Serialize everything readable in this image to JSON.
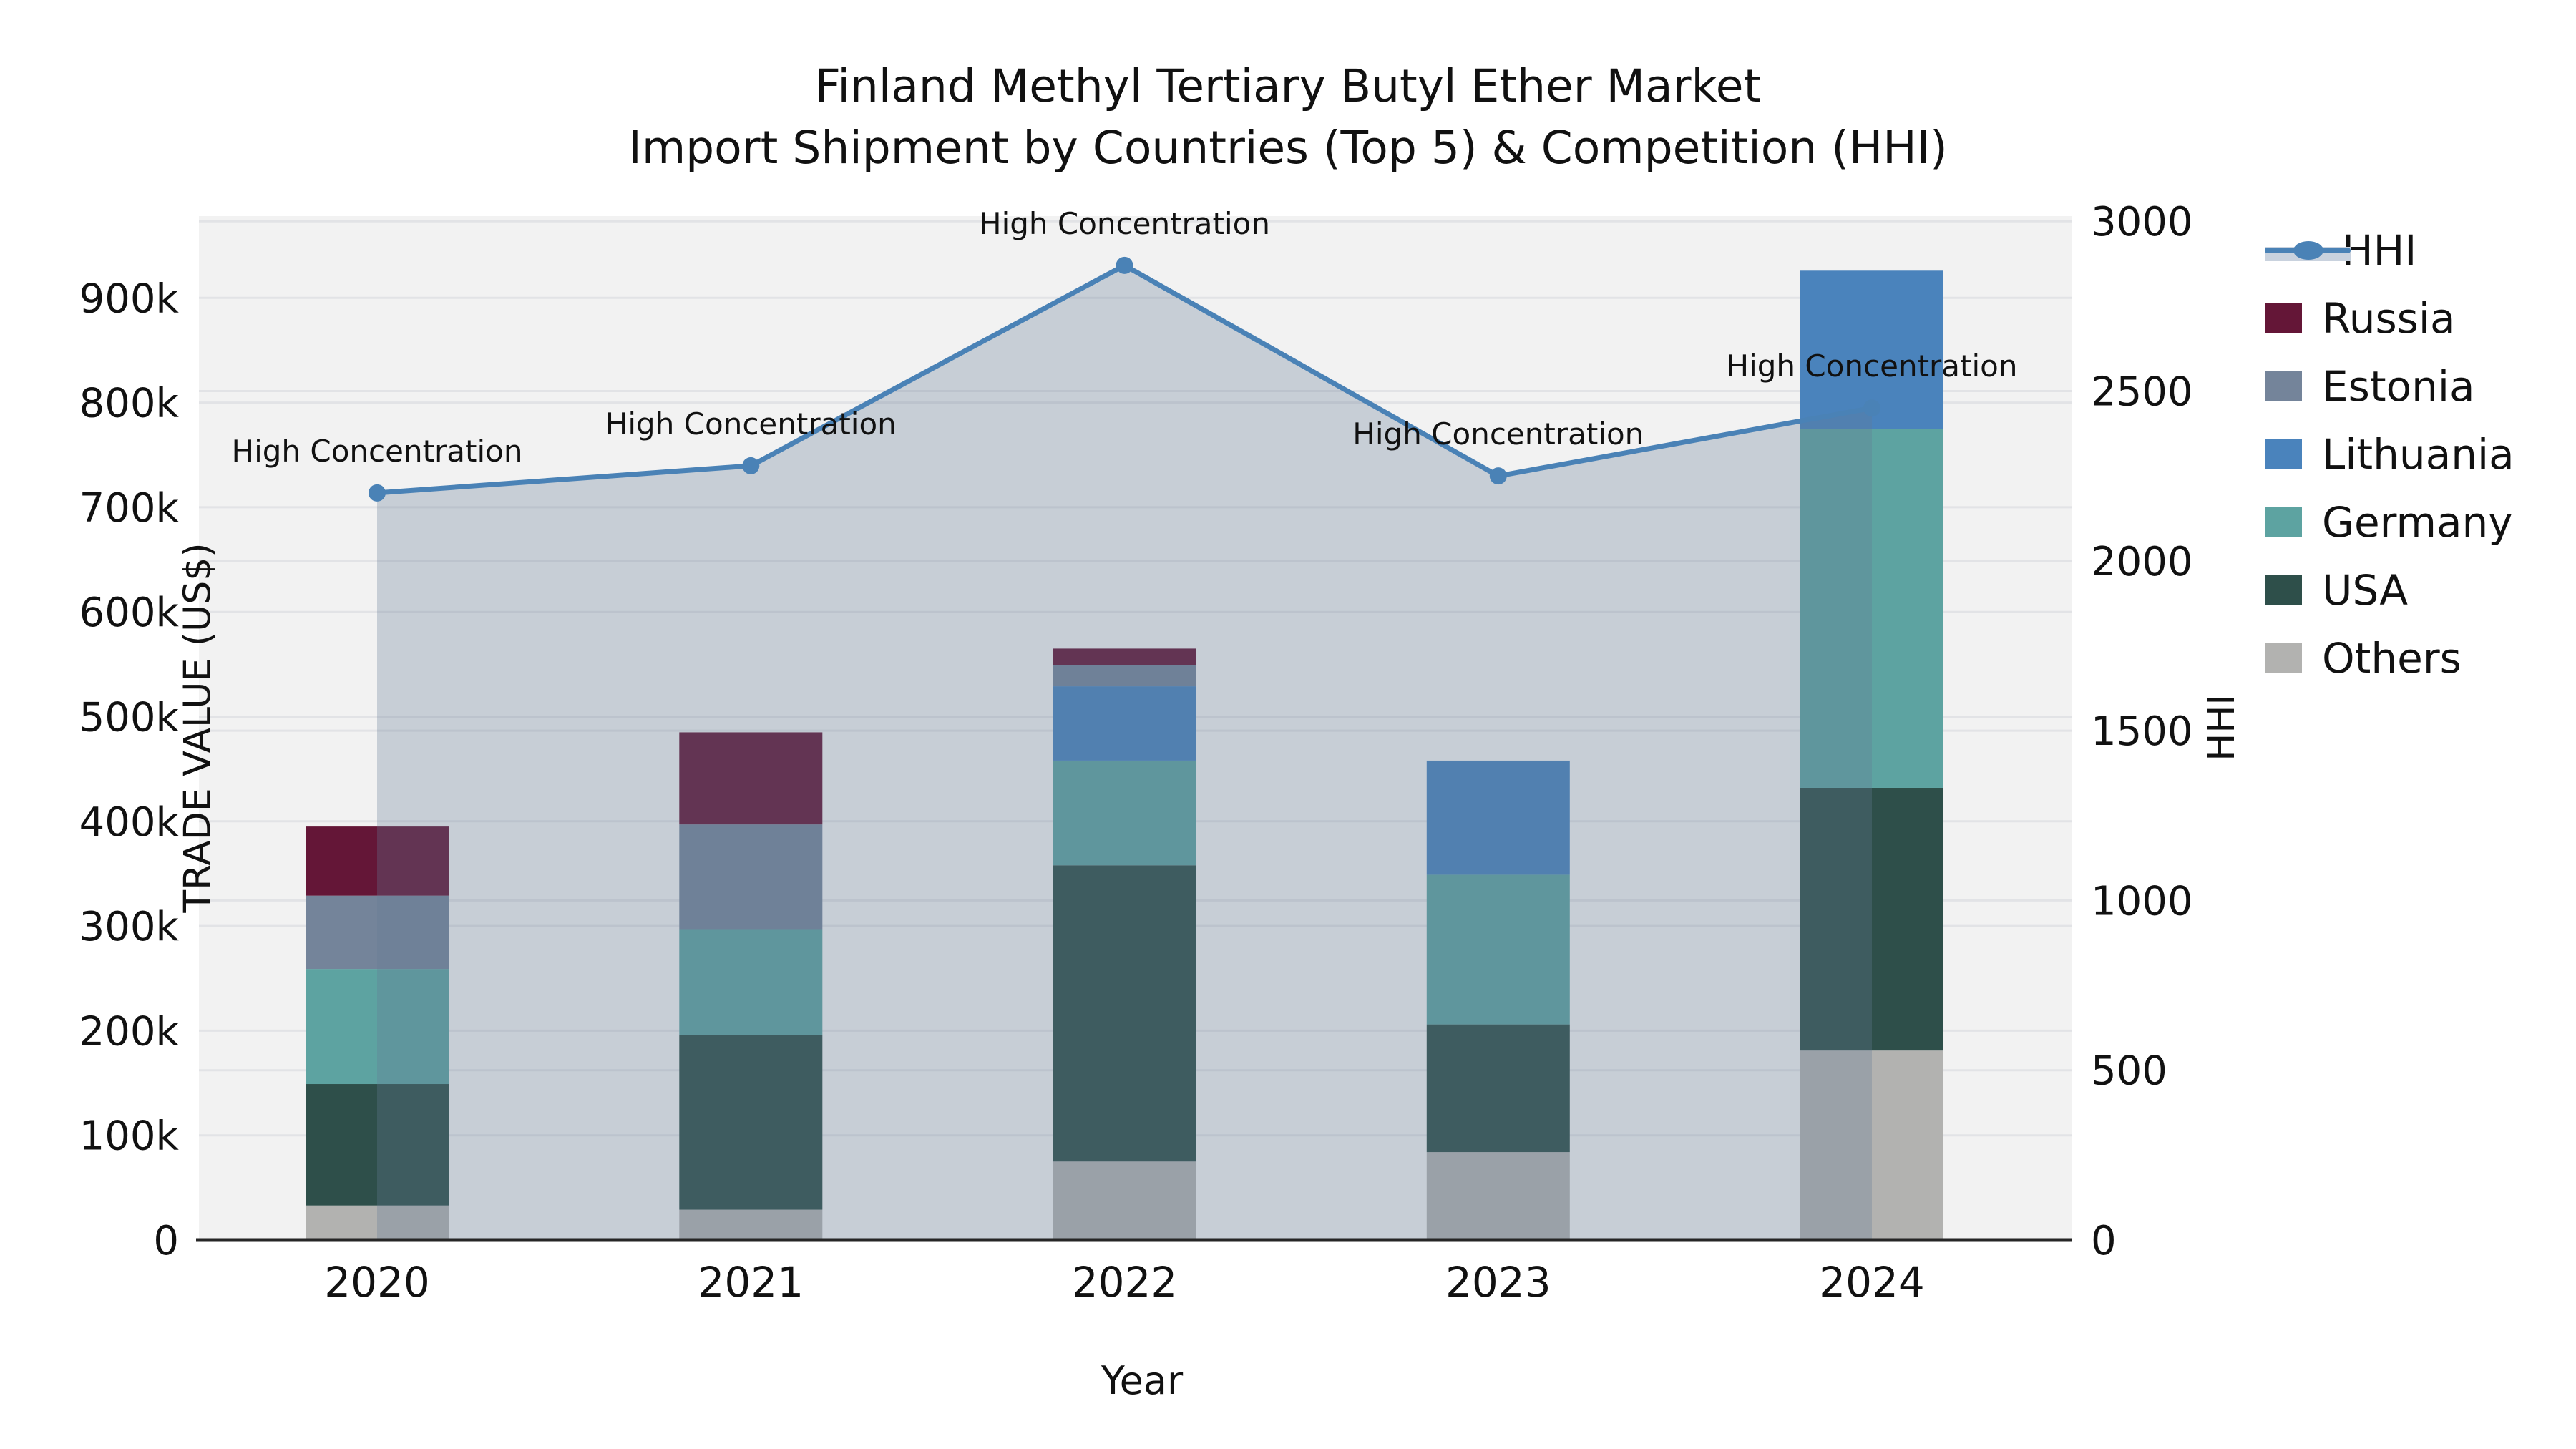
{
  "title": {
    "line1": "Finland Methyl Tertiary Butyl Ether Market",
    "line2": "Import Shipment by Countries (Top 5) & Competition (HHI)"
  },
  "axes": {
    "x": {
      "label": "Year",
      "tick_labels": [
        "2020",
        "2021",
        "2022",
        "2023",
        "2024"
      ]
    },
    "y_left": {
      "label": "TRADE VALUE (US$)",
      "tick_labels": [
        "0",
        "100k",
        "200k",
        "300k",
        "400k",
        "500k",
        "600k",
        "700k",
        "800k",
        "900k"
      ],
      "tick_values": [
        0,
        100000,
        200000,
        300000,
        400000,
        500000,
        600000,
        700000,
        800000,
        900000
      ]
    },
    "y_right": {
      "label": "HHI",
      "tick_labels": [
        "0",
        "500",
        "1000",
        "1500",
        "2000",
        "2500",
        "3000"
      ],
      "tick_values": [
        0,
        500,
        1000,
        1500,
        2000,
        2500,
        3000
      ]
    }
  },
  "legend": [
    {
      "label": "HHI",
      "type": "line",
      "color": "#4a82b6"
    },
    {
      "label": "Russia",
      "type": "swatch",
      "color": "#641637"
    },
    {
      "label": "Estonia",
      "type": "swatch",
      "color": "#74849a"
    },
    {
      "label": "Lithuania",
      "type": "swatch",
      "color": "#4a83bc"
    },
    {
      "label": "Germany",
      "type": "swatch",
      "color": "#5da3a1"
    },
    {
      "label": "USA",
      "type": "swatch",
      "color": "#2e4f4a"
    },
    {
      "label": "Others",
      "type": "swatch",
      "color": "#b2b2b0"
    }
  ],
  "colors": {
    "plot_background": "#f2f2f2",
    "gridline": "#e2e3e6",
    "axis_line": "#262626",
    "hhi_line": "#4a82b6",
    "hhi_area_fill": "rgba(100,123,150,0.30)",
    "annotation_text": "#111111"
  },
  "chart_data": {
    "type": "stacked-bar+line",
    "categories": [
      "2020",
      "2021",
      "2022",
      "2023",
      "2024"
    ],
    "bar_unit": "US$ trade value",
    "stack_order_bottom_to_top": [
      "Others",
      "USA",
      "Germany",
      "Lithuania",
      "Estonia",
      "Russia"
    ],
    "series": [
      {
        "name": "Russia",
        "color": "#641637",
        "values": [
          66000,
          88000,
          16000,
          0,
          0
        ]
      },
      {
        "name": "Estonia",
        "color": "#74849a",
        "values": [
          70000,
          100000,
          20000,
          0,
          0
        ]
      },
      {
        "name": "Lithuania",
        "color": "#4a83bc",
        "values": [
          0,
          0,
          71000,
          109000,
          151000
        ]
      },
      {
        "name": "Germany",
        "color": "#5da3a1",
        "values": [
          110000,
          101000,
          100000,
          143000,
          343000
        ]
      },
      {
        "name": "USA",
        "color": "#2e4f4a",
        "values": [
          116000,
          167000,
          283000,
          122000,
          251000
        ]
      },
      {
        "name": "Others",
        "color": "#b2b2b0",
        "values": [
          33000,
          29000,
          75000,
          84000,
          181000
        ]
      }
    ],
    "bar_totals": [
      395000,
      485000,
      565000,
      458000,
      926000
    ],
    "line_series": {
      "name": "HHI",
      "values": [
        2200,
        2280,
        2870,
        2250,
        2450
      ],
      "annotations": [
        "High Concentration",
        "High Concentration",
        "High Concentration",
        "High Concentration",
        "High Concentration"
      ]
    },
    "ylim_left": [
      0,
      978000
    ],
    "ylim_right": [
      0,
      3000
    ],
    "grid": true,
    "legend_position": "right"
  }
}
